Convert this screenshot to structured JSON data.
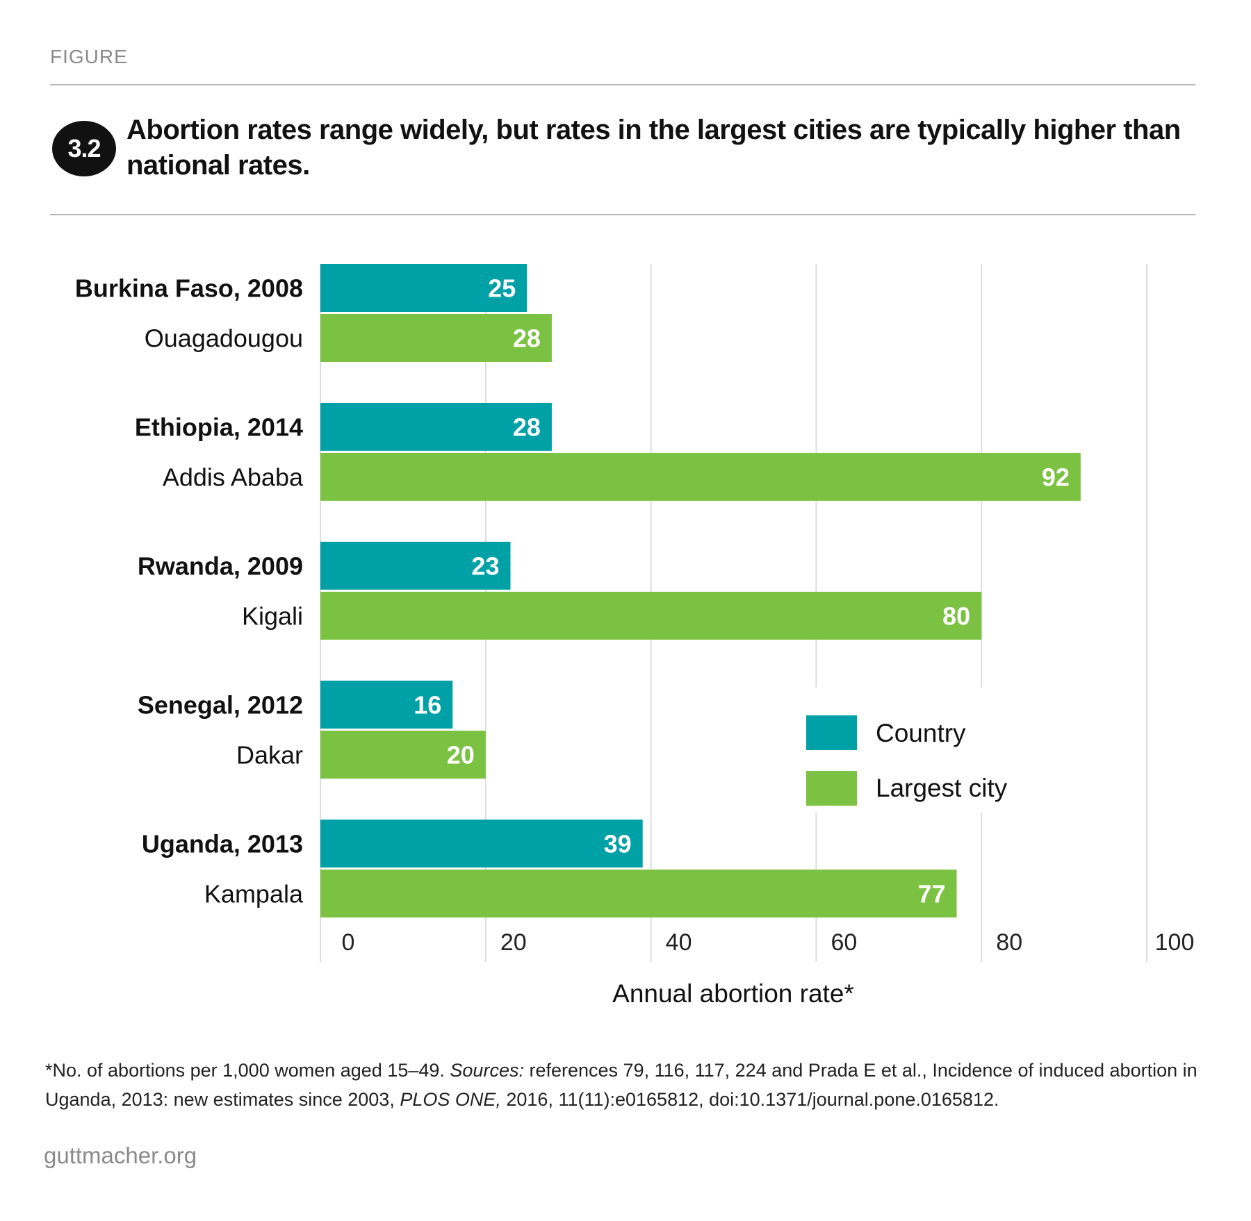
{
  "header": {
    "eyebrow": "FIGURE",
    "badge": "3.2",
    "title": "Abortion rates range widely, but rates in the largest cities are typically higher than national rates."
  },
  "chart_data": {
    "type": "bar",
    "orientation": "horizontal",
    "categories": [
      {
        "country": "Burkina Faso, 2008",
        "city": "Ouagadougou"
      },
      {
        "country": "Ethiopia, 2014",
        "city": "Addis Ababa"
      },
      {
        "country": "Rwanda, 2009",
        "city": "Kigali"
      },
      {
        "country": "Senegal, 2012",
        "city": "Dakar"
      },
      {
        "country": "Uganda, 2013",
        "city": "Kampala"
      }
    ],
    "series": [
      {
        "name": "Country",
        "color": "#00a1a6",
        "values": [
          25,
          28,
          23,
          16,
          39
        ]
      },
      {
        "name": "Largest city",
        "color": "#7cc242",
        "values": [
          28,
          92,
          80,
          20,
          77
        ]
      }
    ],
    "xlim": [
      0,
      100
    ],
    "xticks": [
      "0",
      "20",
      "40",
      "60",
      "80",
      "100"
    ],
    "xlabel": "Annual abortion rate*",
    "grid": true,
    "legend_position": "lower-right"
  },
  "footnote": {
    "part1": "*No. of abortions per 1,000 women aged 15–49. ",
    "sources_label": "Sources:",
    "part2": " references 79, 116, 117, 224 and Prada E et al., Incidence of induced abortion in Uganda, 2013: new estimates since 2003, ",
    "journal": "PLOS ONE,",
    "part3": " 2016, 11(11):e0165812, doi:10.1371/journal.pone.0165812."
  },
  "brand": "guttmacher.org"
}
